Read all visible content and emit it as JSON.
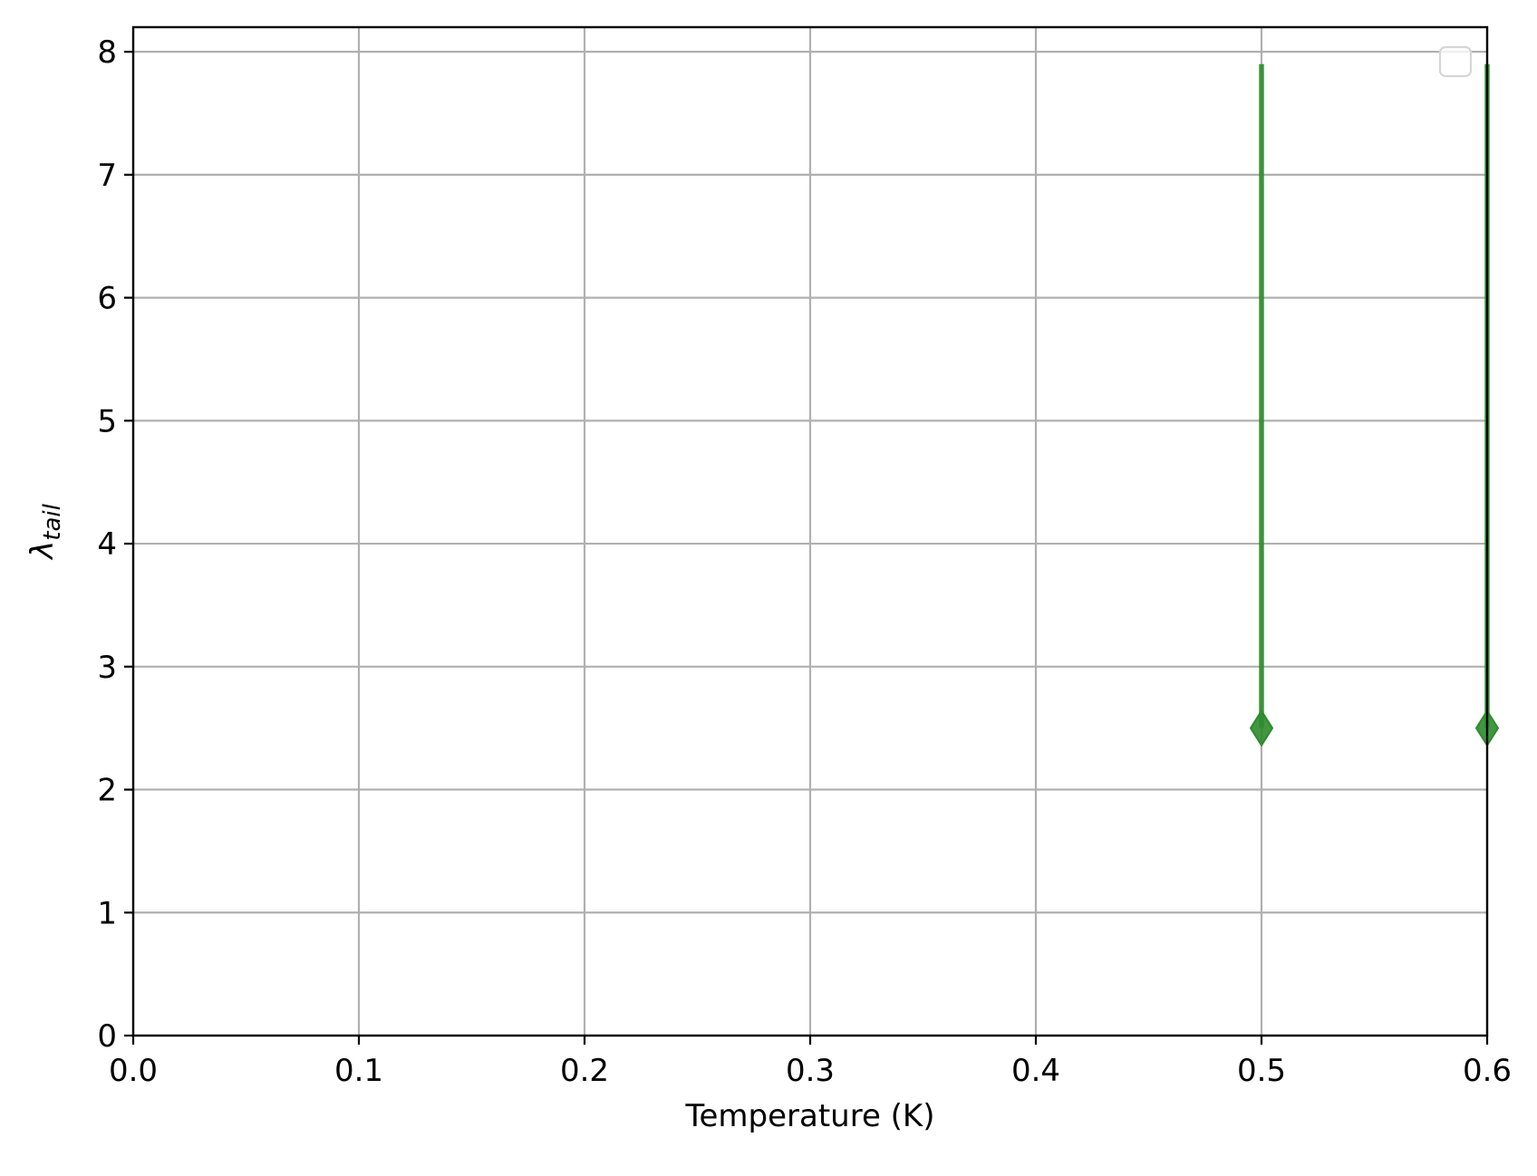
{
  "chart_data": {
    "type": "scatter",
    "xlabel": "Temperature (K)",
    "ylabel_main": "λ",
    "ylabel_sub": "tail",
    "xlim": [
      0.0,
      0.6
    ],
    "ylim": [
      0,
      8.2
    ],
    "x_ticks": [
      "0.0",
      "0.1",
      "0.2",
      "0.3",
      "0.4",
      "0.5",
      "0.6"
    ],
    "y_ticks": [
      "0",
      "1",
      "2",
      "3",
      "4",
      "5",
      "6",
      "7",
      "8"
    ],
    "grid": true,
    "legend": {
      "placement": "top-right",
      "entries": []
    },
    "series": [
      {
        "marker": "diamond",
        "color": "#2e8b2e",
        "points": [
          {
            "x": 0.5,
            "y": 2.5,
            "yerr_low": 0.0,
            "yerr_high": 5.4
          },
          {
            "x": 0.6,
            "y": 2.5,
            "yerr_low": 0.0,
            "yerr_high": 5.4
          }
        ]
      }
    ]
  }
}
